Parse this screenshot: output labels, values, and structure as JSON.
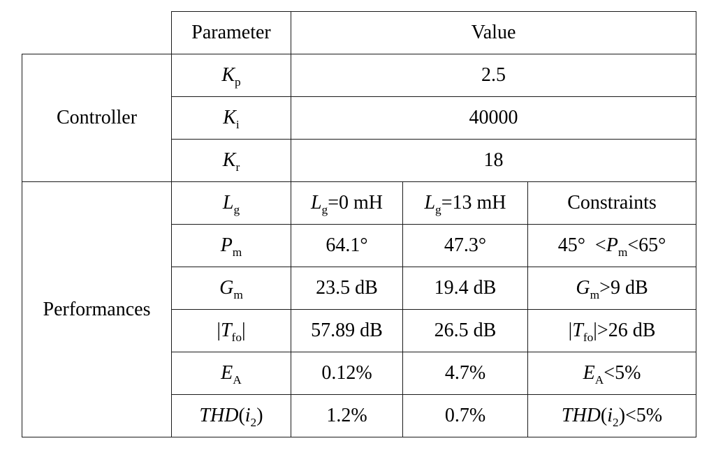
{
  "header": {
    "parameter": "Parameter",
    "value": "Value"
  },
  "groups": {
    "controller": "Controller",
    "performances": "Performances"
  },
  "controller_rows": [
    {
      "symbol": "K",
      "sub": "p",
      "value": "2.5"
    },
    {
      "symbol": "K",
      "sub": "i",
      "value": "40000"
    },
    {
      "symbol": "K",
      "sub": "r",
      "value": "18"
    }
  ],
  "perf_header": {
    "symbol": "L",
    "sub": "g",
    "col1_symbol": "L",
    "col1_sub": "g",
    "col1_rest": "=0 mH",
    "col2_symbol": "L",
    "col2_sub": "g",
    "col2_rest": "=13 mH",
    "col3": "Constraints"
  },
  "perf_rows": [
    {
      "symbol": "P",
      "sub": "m",
      "v1": "64.1°",
      "v2": "47.3°",
      "c_pre": "45°  <",
      "c_sym": "P",
      "c_sub": "m",
      "c_post": "<65°"
    },
    {
      "symbol": "G",
      "sub": "m",
      "v1": "23.5 dB",
      "v2": "19.4 dB",
      "c_pre": "",
      "c_sym": "G",
      "c_sub": "m",
      "c_post": ">9 dB"
    },
    {
      "pre": "|",
      "symbol": "T",
      "sub": "fo",
      "post": "|",
      "v1": "57.89 dB",
      "v2": "26.5 dB",
      "c_pre": "|",
      "c_sym": "T",
      "c_sub": "fo",
      "c_post": "|>26 dB"
    },
    {
      "symbol": "E",
      "sub": "A",
      "v1": "0.12%",
      "v2": "4.7%",
      "c_pre": "",
      "c_sym": "E",
      "c_sub": "A",
      "c_post": "<5%"
    },
    {
      "symbol": "THD",
      "paren_open": "(",
      "inner": "i",
      "inner_sub": "2",
      "paren_close": ")",
      "v1": "1.2%",
      "v2": "0.7%",
      "c_sym": "THD",
      "c_paren_open": "(",
      "c_inner": "i",
      "c_inner_sub": "2",
      "c_post": ")<5%"
    }
  ]
}
